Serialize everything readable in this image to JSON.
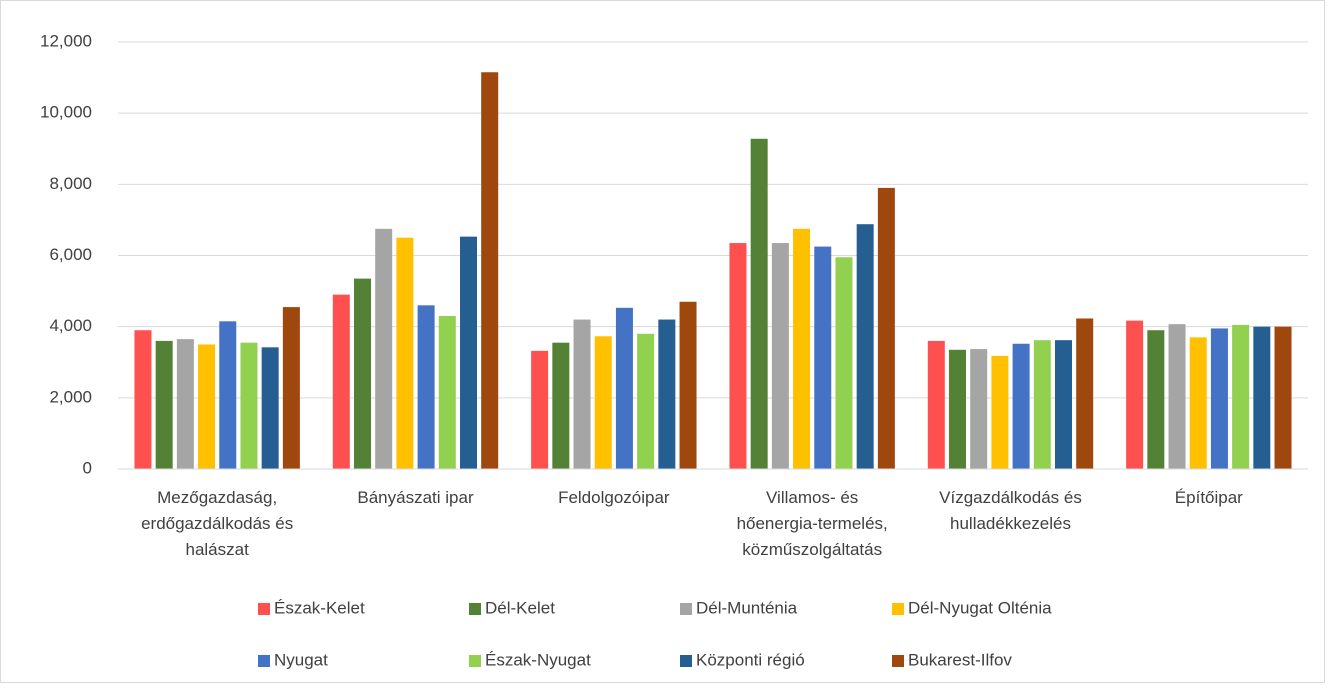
{
  "chart_data": {
    "type": "bar",
    "categories": [
      "Mezőgazdaság, erdőgazdálkodás és halászat",
      "Bányászati ipar",
      "Feldolgozóipar",
      "Villamos- és hőenergia-termelés, közműszolgáltatás",
      "Vízgazdálkodás és hulladékkezelés",
      "Építőipar"
    ],
    "series": [
      {
        "name": "Észak-Kelet",
        "color": "#ff5050",
        "values": [
          3900,
          4900,
          3320,
          6350,
          3600,
          4170
        ]
      },
      {
        "name": "Dél-Kelet",
        "color": "#538135",
        "values": [
          3600,
          5350,
          3550,
          9280,
          3350,
          3900
        ]
      },
      {
        "name": "Dél-Munténia",
        "color": "#a5a5a5",
        "values": [
          3650,
          6750,
          4200,
          6350,
          3370,
          4070
        ]
      },
      {
        "name": "Dél-Nyugat Olténia",
        "color": "#ffc000",
        "values": [
          3500,
          6500,
          3730,
          6750,
          3180,
          3700
        ]
      },
      {
        "name": "Nyugat",
        "color": "#4472c4",
        "values": [
          4150,
          4600,
          4530,
          6250,
          3520,
          3950
        ]
      },
      {
        "name": "Észak-Nyugat",
        "color": "#92d050",
        "values": [
          3550,
          4300,
          3800,
          5950,
          3620,
          4050
        ]
      },
      {
        "name": "Központi régió",
        "color": "#255e91",
        "values": [
          3420,
          6530,
          4200,
          6880,
          3620,
          4000
        ]
      },
      {
        "name": "Bukarest-Ilfov",
        "color": "#9e480e",
        "values": [
          4550,
          11150,
          4700,
          7900,
          4230,
          4000
        ]
      }
    ],
    "ylim": [
      0,
      12000
    ],
    "yticks": [
      0,
      {
        "value": 2000,
        "label": "2,000"
      },
      {
        "value": 4000,
        "label": "4,000"
      },
      {
        "value": 6000,
        "label": "6,000"
      },
      {
        "value": 8000,
        "label": "8,000"
      },
      {
        "value": 10000,
        "label": "10,000"
      },
      {
        "value": 12000,
        "label": "12,000"
      }
    ],
    "grid": true,
    "legend": "bottom"
  }
}
